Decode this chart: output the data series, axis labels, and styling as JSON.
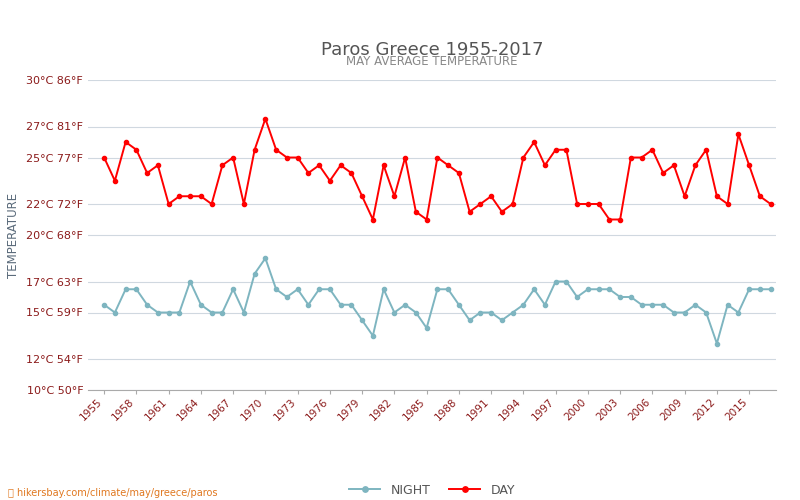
{
  "title": "Paros Greece 1955-2017",
  "subtitle": "MAY AVERAGE TEMPERATURE",
  "ylabel": "TEMPERATURE",
  "xlabel_url": "⛳ hikersbay.com/climate/may/greece/paros",
  "bg_color": "#ffffff",
  "plot_bg_color": "#ffffff",
  "grid_color": "#d0d8e0",
  "years": [
    1955,
    1956,
    1957,
    1958,
    1959,
    1960,
    1961,
    1962,
    1963,
    1964,
    1965,
    1966,
    1967,
    1968,
    1969,
    1970,
    1971,
    1972,
    1973,
    1974,
    1975,
    1976,
    1977,
    1978,
    1979,
    1980,
    1981,
    1982,
    1983,
    1984,
    1985,
    1986,
    1987,
    1988,
    1989,
    1990,
    1991,
    1992,
    1993,
    1994,
    1995,
    1996,
    1997,
    1998,
    1999,
    2000,
    2001,
    2002,
    2003,
    2004,
    2005,
    2006,
    2007,
    2008,
    2009,
    2010,
    2011,
    2012,
    2013,
    2014,
    2015,
    2016,
    2017
  ],
  "day_temps": [
    25.0,
    23.5,
    26.0,
    25.5,
    24.0,
    24.5,
    22.0,
    22.5,
    22.5,
    22.5,
    22.0,
    24.5,
    25.0,
    22.0,
    25.5,
    27.5,
    25.5,
    25.0,
    25.0,
    24.0,
    24.5,
    23.5,
    24.5,
    24.0,
    22.5,
    21.0,
    24.5,
    22.5,
    25.0,
    21.5,
    21.0,
    25.0,
    24.5,
    24.0,
    21.5,
    22.0,
    22.5,
    21.5,
    22.0,
    25.0,
    26.0,
    24.5,
    25.5,
    25.5,
    22.0,
    22.0,
    22.0,
    21.0,
    21.0,
    25.0,
    25.0,
    25.5,
    24.0,
    24.5,
    22.5,
    24.5,
    25.5,
    22.5,
    22.0,
    26.5,
    24.5,
    22.5,
    22.0
  ],
  "night_temps": [
    15.5,
    15.0,
    16.5,
    16.5,
    15.5,
    15.0,
    15.0,
    15.0,
    17.0,
    15.5,
    15.0,
    15.0,
    16.5,
    15.0,
    17.5,
    18.5,
    16.5,
    16.0,
    16.5,
    15.5,
    16.5,
    16.5,
    15.5,
    15.5,
    14.5,
    13.5,
    16.5,
    15.0,
    15.5,
    15.0,
    14.0,
    16.5,
    16.5,
    15.5,
    14.5,
    15.0,
    15.0,
    14.5,
    15.0,
    15.5,
    16.5,
    15.5,
    17.0,
    17.0,
    16.0,
    16.5,
    16.5,
    16.5,
    16.0,
    16.0,
    15.5,
    15.5,
    15.5,
    15.0,
    15.0,
    15.5,
    15.0,
    13.0,
    15.5,
    15.0,
    16.5,
    16.5,
    16.5
  ],
  "day_color": "#ff0000",
  "night_color": "#7eb5c0",
  "title_color": "#555555",
  "subtitle_color": "#888888",
  "label_color": "#8b1a1a",
  "ylabel_color": "#5a6a7a",
  "ylim": [
    10,
    30
  ],
  "yticks_c": [
    10,
    12,
    15,
    17,
    20,
    22,
    25,
    27,
    30
  ],
  "yticks_f": [
    50,
    54,
    59,
    63,
    68,
    72,
    77,
    81,
    86
  ],
  "xtick_years": [
    1955,
    1958,
    1961,
    1964,
    1967,
    1970,
    1973,
    1976,
    1979,
    1982,
    1985,
    1988,
    1991,
    1994,
    1997,
    2000,
    2003,
    2006,
    2009,
    2012,
    2015
  ],
  "legend_night_label": "NIGHT",
  "legend_day_label": "DAY",
  "marker_size": 3.0,
  "linewidth": 1.4,
  "url_text": "hikersbay.com/climate/may/greece/paros",
  "url_color": "#e07820"
}
